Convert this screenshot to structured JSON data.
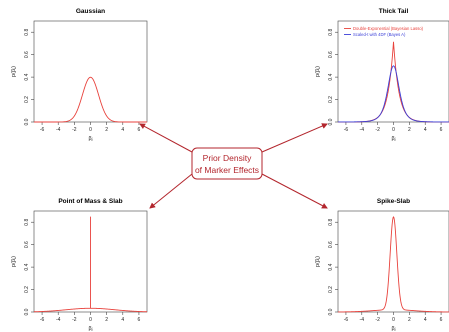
{
  "center_label": [
    "Prior Density",
    "of Marker Effects"
  ],
  "colors": {
    "red": "#e8423c",
    "blue": "#3b3fd8",
    "arrow": "#b3262d",
    "box_fill": "#ffffff",
    "box_border": "#b3262d"
  },
  "chart_data": [
    {
      "id": "gaussian",
      "type": "line",
      "title": "Gaussian",
      "xlabel": "βⱼ",
      "ylabel": "p(βⱼ)",
      "xlim": [
        -7,
        7
      ],
      "ylim": [
        0,
        0.9
      ],
      "xticks": [
        -6,
        -4,
        -2,
        0,
        2,
        4,
        6
      ],
      "yticks": [
        0.0,
        0.2,
        0.4,
        0.6,
        0.8
      ],
      "series": [
        {
          "color": "#e8423c",
          "curve": "normal",
          "params": {
            "sd": 1.0
          }
        }
      ]
    },
    {
      "id": "thick-tail",
      "type": "line",
      "title": "Thick Tail",
      "xlabel": "βⱼ",
      "ylabel": "p(βⱼ)",
      "xlim": [
        -7,
        7
      ],
      "ylim": [
        0,
        0.9
      ],
      "xticks": [
        -6,
        -4,
        -2,
        0,
        2,
        4,
        6
      ],
      "yticks": [
        0.0,
        0.2,
        0.4,
        0.6,
        0.8
      ],
      "legend": "top-right",
      "series": [
        {
          "name": "Double-Exponential (Bayesian Lasso)",
          "color": "#e8423c",
          "curve": "laplace",
          "params": {
            "b": 0.7
          }
        },
        {
          "name": "Scaled-t with 4DF (Bayes A)",
          "color": "#3b3fd8",
          "curve": "t",
          "params": {
            "df": 4,
            "scale": 0.75
          }
        }
      ]
    },
    {
      "id": "point-mass-slab",
      "type": "line",
      "title": "Point of Mass & Slab",
      "xlabel": "βⱼ",
      "ylabel": "p(βⱼ)",
      "xlim": [
        -7,
        7
      ],
      "ylim": [
        0,
        0.9
      ],
      "xticks": [
        -6,
        -4,
        -2,
        0,
        2,
        4,
        6
      ],
      "yticks": [
        0.0,
        0.2,
        0.4,
        0.6,
        0.8
      ],
      "series": [
        {
          "color": "#e8423c",
          "curve": "spike_slab",
          "params": {
            "slab_sd": 3.0,
            "slab_weight": 0.25,
            "spike_height": 0.85
          }
        }
      ]
    },
    {
      "id": "spike-slab",
      "type": "line",
      "title": "Spike-Slab",
      "xlabel": "βⱼ",
      "ylabel": "p(βⱼ)",
      "xlim": [
        -7,
        7
      ],
      "ylim": [
        0,
        0.9
      ],
      "xticks": [
        -6,
        -4,
        -2,
        0,
        2,
        4,
        6
      ],
      "yticks": [
        0.0,
        0.2,
        0.4,
        0.6,
        0.8
      ],
      "series": [
        {
          "color": "#e8423c",
          "curve": "mixture",
          "params": {
            "w1": 0.87,
            "sd1": 0.42,
            "w2": 0.13,
            "sd2": 2.5
          }
        }
      ]
    }
  ]
}
